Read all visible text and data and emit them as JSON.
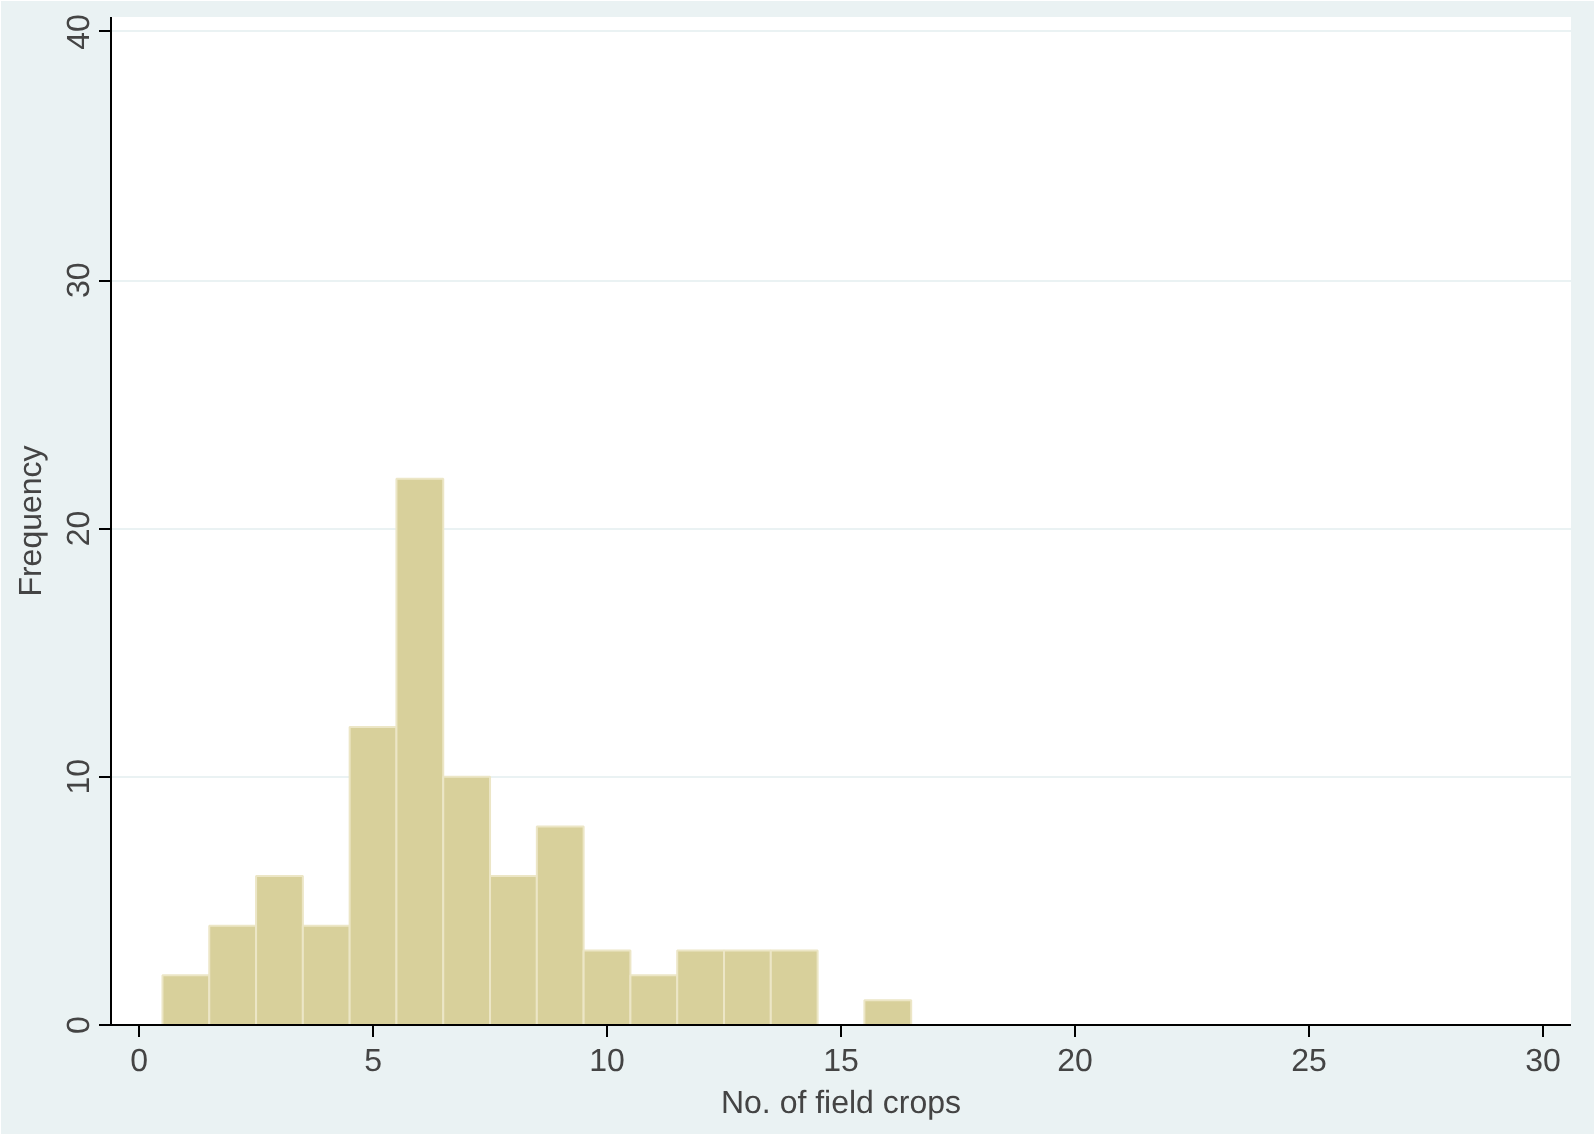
{
  "chart_data": {
    "type": "histogram",
    "xlabel": "No. of field crops",
    "ylabel": "Frequency",
    "bins": [
      0.5,
      1.5,
      2.5,
      3.5,
      4.5,
      5.5,
      6.5,
      7.5,
      8.5,
      9.5,
      10.5,
      11.5,
      12.5,
      13.5,
      14.5,
      15.5,
      16.5
    ],
    "values": [
      2,
      4,
      6,
      4,
      12,
      22,
      10,
      6,
      8,
      3,
      2,
      3,
      3,
      3,
      0,
      1
    ],
    "color": "#d8d09b",
    "xlim": [
      -0.6,
      30.6
    ],
    "ylim": [
      0,
      40.6
    ],
    "xticks": [
      0,
      5,
      10,
      15,
      20,
      25,
      30
    ],
    "yticks": [
      0,
      10,
      20,
      30,
      40
    ],
    "grid": "y"
  }
}
